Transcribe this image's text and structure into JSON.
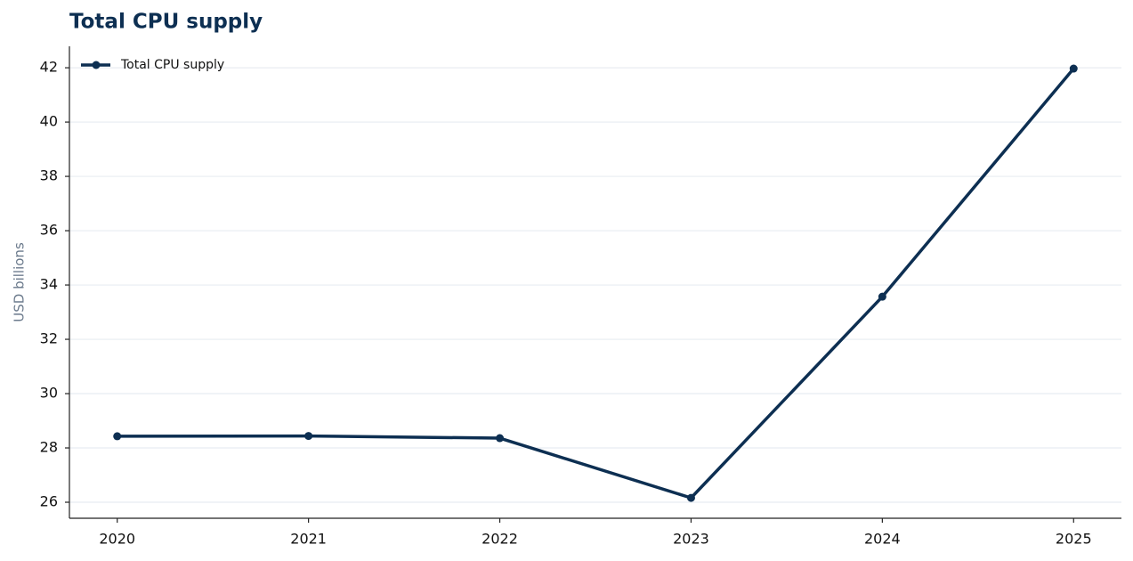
{
  "chart_data": {
    "type": "line",
    "title": "Total CPU supply",
    "ylabel": "USD billions",
    "x": [
      2020,
      2021,
      2022,
      2023,
      2024,
      2025
    ],
    "series": [
      {
        "name": "Total CPU supply",
        "color": "#0d2f52",
        "values": [
          28.43,
          28.44,
          28.36,
          26.16,
          33.57,
          41.97
        ]
      }
    ],
    "xlim": [
      2019.75,
      2025.25
    ],
    "xticks": [
      2020,
      2021,
      2022,
      2023,
      2024,
      2025
    ],
    "ylim": [
      25.41,
      42.79
    ],
    "yticks": [
      26,
      28,
      30,
      32,
      34,
      36,
      38,
      40,
      42
    ],
    "grid": true,
    "legend": "upper-left"
  }
}
